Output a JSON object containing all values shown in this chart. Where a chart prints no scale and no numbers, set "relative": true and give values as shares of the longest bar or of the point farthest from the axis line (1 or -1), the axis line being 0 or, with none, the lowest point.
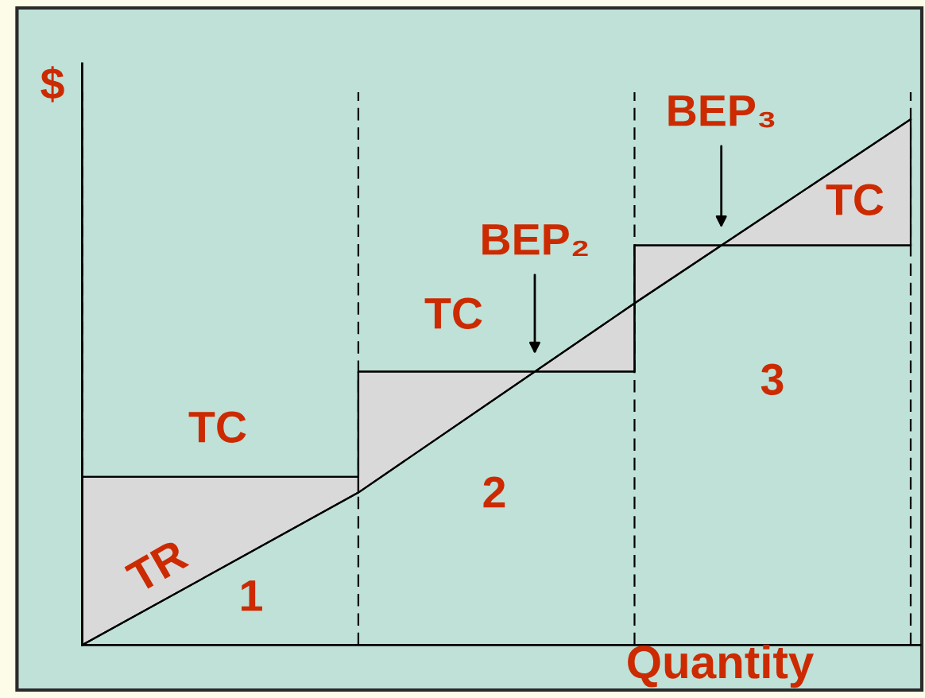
{
  "chart_data": {
    "type": "line",
    "relative": true,
    "xlabel": "Quantity",
    "ylabel": "$",
    "categories": [
      null,
      null,
      null,
      null
    ],
    "grid": "x",
    "series": [
      {
        "name": "TR",
        "color": "#000000",
        "values": [
          0,
          0.29,
          0.65,
          1
        ]
      },
      {
        "name": "TC",
        "type": "step",
        "color": "#000000",
        "values": [
          0.32,
          0.52,
          0.76,
          0.76
        ],
        "lower": [
          0,
          0.29,
          0.65,
          1
        ],
        "upper": [
          0.32,
          0.52,
          0.76,
          0.76
        ]
      }
    ],
    "annotations": [
      "TC",
      "TC",
      "BEP₂",
      "BEP₃",
      "1",
      "2",
      "3"
    ]
  }
}
